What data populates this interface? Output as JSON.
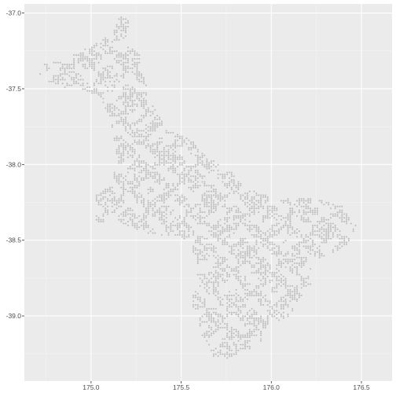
{
  "chart_data": {
    "type": "scatter",
    "title": "",
    "xlabel": "",
    "ylabel": "",
    "xlim": [
      174.63,
      176.67
    ],
    "ylim": [
      -39.43,
      -36.94
    ],
    "x_ticks": [
      175.0,
      175.5,
      176.0,
      176.5
    ],
    "x_tick_labels": [
      "175.0",
      "175.5",
      "176.0",
      "176.5"
    ],
    "y_ticks": [
      -37.0,
      -37.5,
      -38.0,
      -38.5,
      -39.0
    ],
    "y_tick_labels": [
      "-37.0",
      "-37.5",
      "-38.0",
      "-38.5",
      "-39.0"
    ],
    "grid": true,
    "legend": "none",
    "point_color": "#bdbdbd",
    "panel_color": "#ebebeb",
    "grid_major_color": "#ffffff",
    "grid_minor_color": "#f4f4f4",
    "region_polygon": [
      [
        174.69,
        -37.35
      ],
      [
        174.85,
        -37.31
      ],
      [
        175.0,
        -37.22
      ],
      [
        175.12,
        -37.13
      ],
      [
        175.16,
        -37.02
      ],
      [
        175.21,
        -37.05
      ],
      [
        175.2,
        -37.2
      ],
      [
        175.27,
        -37.28
      ],
      [
        175.31,
        -37.5
      ],
      [
        175.36,
        -37.65
      ],
      [
        175.42,
        -37.77
      ],
      [
        175.56,
        -37.84
      ],
      [
        175.62,
        -37.93
      ],
      [
        175.79,
        -38.06
      ],
      [
        175.86,
        -38.16
      ],
      [
        176.05,
        -38.23
      ],
      [
        176.2,
        -38.22
      ],
      [
        176.28,
        -38.24
      ],
      [
        176.4,
        -38.28
      ],
      [
        176.42,
        -38.33
      ],
      [
        176.47,
        -38.4
      ],
      [
        176.43,
        -38.52
      ],
      [
        176.35,
        -38.58
      ],
      [
        176.26,
        -38.62
      ],
      [
        176.2,
        -38.72
      ],
      [
        176.22,
        -38.8
      ],
      [
        176.15,
        -38.9
      ],
      [
        176.1,
        -39.0
      ],
      [
        176.0,
        -39.05
      ],
      [
        175.95,
        -39.1
      ],
      [
        175.95,
        -39.17
      ],
      [
        175.88,
        -39.22
      ],
      [
        175.76,
        -39.28
      ],
      [
        175.68,
        -39.27
      ],
      [
        175.65,
        -39.18
      ],
      [
        175.6,
        -39.1
      ],
      [
        175.6,
        -39.02
      ],
      [
        175.55,
        -38.9
      ],
      [
        175.6,
        -38.78
      ],
      [
        175.58,
        -38.65
      ],
      [
        175.55,
        -38.5
      ],
      [
        175.45,
        -38.48
      ],
      [
        175.3,
        -38.45
      ],
      [
        175.15,
        -38.38
      ],
      [
        175.02,
        -38.38
      ],
      [
        175.02,
        -38.2
      ],
      [
        175.12,
        -38.08
      ],
      [
        175.15,
        -37.98
      ],
      [
        175.12,
        -37.8
      ],
      [
        175.1,
        -37.68
      ],
      [
        175.05,
        -37.55
      ],
      [
        174.95,
        -37.5
      ],
      [
        174.85,
        -37.49
      ],
      [
        174.75,
        -37.45
      ],
      [
        174.7,
        -37.38
      ]
    ]
  }
}
